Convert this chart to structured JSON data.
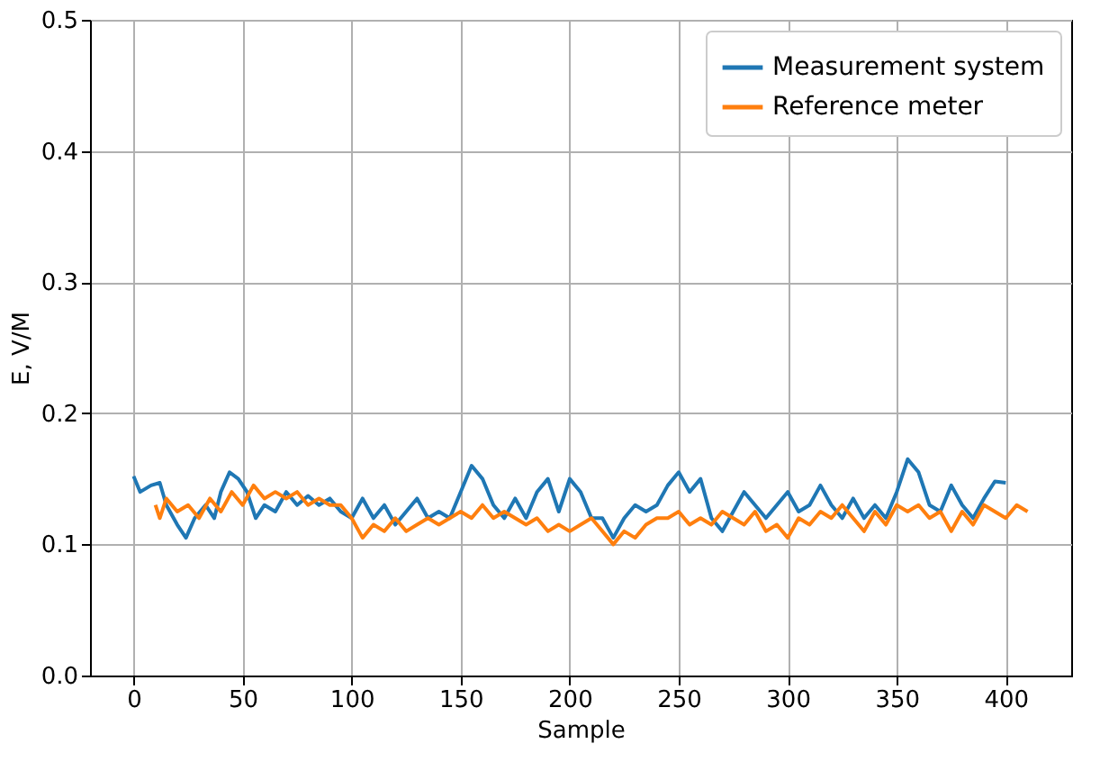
{
  "chart_data": {
    "type": "line",
    "xlabel": "Sample",
    "ylabel": "E, V/M",
    "xlim": [
      -20,
      430
    ],
    "ylim": [
      0,
      0.5
    ],
    "xticks": [
      0,
      50,
      100,
      150,
      200,
      250,
      300,
      350,
      400
    ],
    "yticks": [
      {
        "value": 0,
        "label": "0.0"
      },
      0.1,
      0.2,
      0.3,
      0.4,
      0.5
    ],
    "grid": true,
    "legend": "top right",
    "marker": "none",
    "line_style": "solid",
    "series": [
      {
        "name": "Measurement system",
        "color": "#1f77b4",
        "x": [
          0,
          3,
          8,
          12,
          15,
          20,
          24,
          28,
          33,
          37,
          40,
          44,
          48,
          52,
          56,
          60,
          65,
          70,
          75,
          80,
          85,
          90,
          95,
          100,
          105,
          110,
          115,
          120,
          125,
          130,
          135,
          140,
          145,
          150,
          155,
          160,
          165,
          170,
          175,
          180,
          185,
          190,
          195,
          200,
          205,
          210,
          215,
          220,
          225,
          230,
          235,
          240,
          245,
          250,
          255,
          260,
          265,
          270,
          275,
          280,
          285,
          290,
          295,
          300,
          305,
          310,
          315,
          320,
          325,
          330,
          335,
          340,
          345,
          350,
          355,
          360,
          365,
          370,
          375,
          380,
          385,
          390,
          395,
          400
        ],
        "values": [
          0.152,
          0.14,
          0.145,
          0.147,
          0.13,
          0.115,
          0.105,
          0.12,
          0.13,
          0.12,
          0.14,
          0.155,
          0.15,
          0.14,
          0.12,
          0.13,
          0.125,
          0.14,
          0.13,
          0.137,
          0.13,
          0.135,
          0.125,
          0.12,
          0.135,
          0.12,
          0.13,
          0.115,
          0.125,
          0.135,
          0.12,
          0.125,
          0.12,
          0.14,
          0.16,
          0.15,
          0.13,
          0.12,
          0.135,
          0.12,
          0.14,
          0.15,
          0.125,
          0.15,
          0.14,
          0.12,
          0.12,
          0.105,
          0.12,
          0.13,
          0.125,
          0.13,
          0.145,
          0.155,
          0.14,
          0.15,
          0.12,
          0.11,
          0.125,
          0.14,
          0.13,
          0.12,
          0.13,
          0.14,
          0.125,
          0.13,
          0.145,
          0.13,
          0.12,
          0.135,
          0.12,
          0.13,
          0.12,
          0.14,
          0.165,
          0.155,
          0.13,
          0.125,
          0.145,
          0.13,
          0.12,
          0.135,
          0.148,
          0.147
        ]
      },
      {
        "name": "Reference meter",
        "color": "#ff7f0e",
        "x": [
          10,
          12,
          15,
          20,
          25,
          30,
          35,
          40,
          45,
          50,
          55,
          60,
          65,
          70,
          75,
          80,
          85,
          90,
          95,
          100,
          105,
          110,
          115,
          120,
          125,
          130,
          135,
          140,
          145,
          150,
          155,
          160,
          165,
          170,
          175,
          180,
          185,
          190,
          195,
          200,
          205,
          210,
          215,
          220,
          225,
          230,
          235,
          240,
          245,
          250,
          255,
          260,
          265,
          270,
          275,
          280,
          285,
          290,
          295,
          300,
          305,
          310,
          315,
          320,
          325,
          330,
          335,
          340,
          345,
          350,
          355,
          360,
          365,
          370,
          375,
          380,
          385,
          390,
          395,
          400,
          405,
          410
        ],
        "values": [
          0.13,
          0.12,
          0.135,
          0.125,
          0.13,
          0.12,
          0.135,
          0.125,
          0.14,
          0.13,
          0.145,
          0.135,
          0.14,
          0.135,
          0.14,
          0.13,
          0.135,
          0.13,
          0.13,
          0.12,
          0.105,
          0.115,
          0.11,
          0.12,
          0.11,
          0.115,
          0.12,
          0.115,
          0.12,
          0.125,
          0.12,
          0.13,
          0.12,
          0.125,
          0.12,
          0.115,
          0.12,
          0.11,
          0.115,
          0.11,
          0.115,
          0.12,
          0.11,
          0.1,
          0.11,
          0.105,
          0.115,
          0.12,
          0.12,
          0.125,
          0.115,
          0.12,
          0.115,
          0.125,
          0.12,
          0.115,
          0.125,
          0.11,
          0.115,
          0.105,
          0.12,
          0.115,
          0.125,
          0.12,
          0.13,
          0.12,
          0.11,
          0.125,
          0.115,
          0.13,
          0.125,
          0.13,
          0.12,
          0.125,
          0.11,
          0.125,
          0.115,
          0.13,
          0.125,
          0.12,
          0.13,
          0.125
        ]
      }
    ]
  }
}
